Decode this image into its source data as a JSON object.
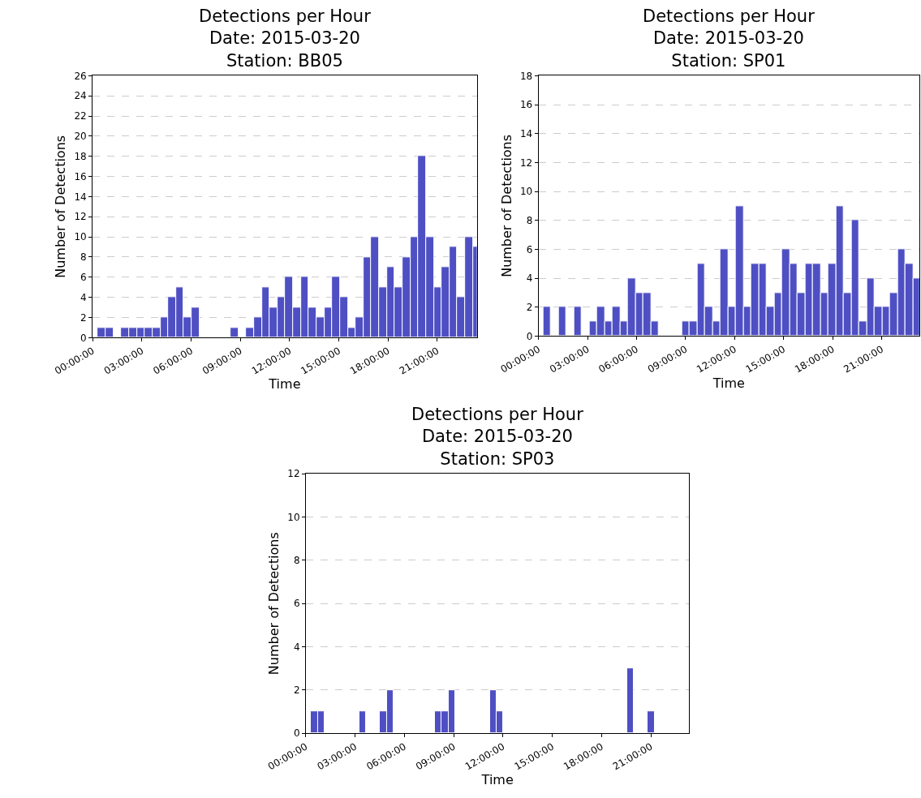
{
  "chart_data": [
    {
      "type": "histogram",
      "title": "Detections per Hour\nDate: 2015-03-20\nStation: BB05",
      "xlabel": "Time",
      "ylabel": "Number of Detections",
      "color": "#4f4fc4",
      "grid": "y",
      "bins": [
        0.32,
        0.8,
        1.27,
        1.75,
        2.22,
        2.7,
        3.18,
        3.65,
        4.13,
        4.6,
        5.08,
        5.56,
        6.03,
        6.51,
        6.98,
        7.46,
        7.94,
        8.41,
        8.89,
        9.36,
        9.84,
        10.32,
        10.79,
        11.27,
        11.74,
        12.22,
        12.7,
        13.17,
        13.65,
        14.12,
        14.6,
        15.08,
        15.55,
        16.03,
        16.5,
        16.98,
        17.46,
        17.93,
        18.41,
        18.88,
        19.36,
        19.84,
        20.31,
        20.79,
        21.26,
        21.74,
        22.22,
        22.69,
        23.17,
        23.64
      ],
      "values": [
        1,
        1,
        0,
        1,
        1,
        1,
        1,
        1,
        2,
        4,
        5,
        2,
        3,
        0,
        0,
        0,
        0,
        1,
        0,
        1,
        2,
        5,
        3,
        4,
        6,
        3,
        6,
        3,
        2,
        3,
        6,
        4,
        1,
        2,
        8,
        10,
        5,
        7,
        5,
        8,
        10,
        18,
        10,
        5,
        7,
        9,
        4,
        10,
        9
      ],
      "xlim": [
        0,
        23.41
      ],
      "xticks": [
        {
          "value": 0,
          "label": "00:00:00"
        },
        {
          "value": 3,
          "label": "03:00:00"
        },
        {
          "value": 6,
          "label": "06:00:00"
        },
        {
          "value": 9,
          "label": "09:00:00"
        },
        {
          "value": 12,
          "label": "12:00:00"
        },
        {
          "value": 15,
          "label": "15:00:00"
        },
        {
          "value": 18,
          "label": "18:00:00"
        },
        {
          "value": 21,
          "label": "21:00:00"
        }
      ],
      "ylim": [
        0,
        26
      ],
      "yticks": [
        0,
        2,
        4,
        6,
        8,
        10,
        12,
        14,
        16,
        18,
        20,
        22,
        24,
        26
      ]
    },
    {
      "type": "histogram",
      "title": "Detections per Hour\nDate: 2015-03-20\nStation: SP01",
      "xlabel": "Time",
      "ylabel": "Number of Detections",
      "color": "#4f4fc4",
      "grid": "y",
      "bins": [
        0.28,
        0.75,
        1.22,
        1.7,
        2.17,
        2.64,
        3.11,
        3.58,
        4.06,
        4.53,
        5.0,
        5.47,
        5.94,
        6.42,
        6.89,
        7.36,
        7.83,
        8.3,
        8.78,
        9.25,
        9.72,
        10.19,
        10.66,
        11.14,
        11.61,
        12.08,
        12.55,
        13.02,
        13.5,
        13.97,
        14.44,
        14.91,
        15.38,
        15.86,
        16.33,
        16.8,
        17.27,
        17.74,
        18.22,
        18.69,
        19.16,
        19.63,
        20.1,
        20.58,
        21.05,
        21.52,
        21.99,
        22.46,
        22.94,
        23.41
      ],
      "values": [
        2,
        0,
        2,
        0,
        2,
        0,
        1,
        2,
        1,
        2,
        1,
        4,
        3,
        3,
        1,
        0,
        0,
        0,
        1,
        1,
        5,
        2,
        1,
        6,
        2,
        9,
        2,
        5,
        5,
        2,
        3,
        6,
        5,
        3,
        5,
        5,
        3,
        5,
        9,
        3,
        8,
        1,
        4,
        2,
        2,
        3,
        6,
        5,
        4
      ],
      "xlim": [
        0,
        23.3
      ],
      "xticks": [
        {
          "value": 0,
          "label": "00:00:00"
        },
        {
          "value": 3,
          "label": "03:00:00"
        },
        {
          "value": 6,
          "label": "06:00:00"
        },
        {
          "value": 9,
          "label": "09:00:00"
        },
        {
          "value": 12,
          "label": "12:00:00"
        },
        {
          "value": 15,
          "label": "15:00:00"
        },
        {
          "value": 18,
          "label": "18:00:00"
        },
        {
          "value": 21,
          "label": "21:00:00"
        }
      ],
      "ylim": [
        0,
        18
      ],
      "yticks": [
        0,
        2,
        4,
        6,
        8,
        10,
        12,
        14,
        16,
        18
      ]
    },
    {
      "type": "histogram",
      "title": "Detections per Hour\nDate: 2015-03-20\nStation: SP03",
      "xlabel": "Time",
      "ylabel": "Number of Detections",
      "color": "#4f4fc4",
      "grid": "y",
      "bins": [
        0.32,
        0.73,
        1.15,
        1.57,
        1.99,
        2.41,
        2.83,
        3.24,
        3.66,
        4.08,
        4.5,
        4.92,
        5.34,
        5.76,
        6.17,
        6.59,
        7.01,
        7.43,
        7.85,
        8.27,
        8.69,
        9.1,
        9.52,
        9.94,
        10.36,
        10.78,
        11.2,
        11.61,
        12.03,
        12.45,
        12.87,
        13.29,
        13.71,
        14.13,
        14.54,
        14.96,
        15.38,
        15.8,
        16.22,
        16.64,
        17.05,
        17.47,
        17.89,
        18.31,
        18.73,
        19.15,
        19.57,
        19.98,
        20.4,
        20.82,
        21.24
      ],
      "values": [
        1,
        1,
        0,
        0,
        0,
        0,
        0,
        1,
        0,
        0,
        1,
        2,
        0,
        0,
        0,
        0,
        0,
        0,
        1,
        1,
        2,
        0,
        0,
        0,
        0,
        0,
        2,
        1,
        0,
        0,
        0,
        0,
        0,
        0,
        0,
        0,
        0,
        0,
        0,
        0,
        0,
        0,
        0,
        0,
        0,
        0,
        3,
        0,
        0,
        1
      ],
      "xlim": [
        0,
        23.34
      ],
      "xticks": [
        {
          "value": 0,
          "label": "00:00:00"
        },
        {
          "value": 3,
          "label": "03:00:00"
        },
        {
          "value": 6,
          "label": "06:00:00"
        },
        {
          "value": 9,
          "label": "09:00:00"
        },
        {
          "value": 12,
          "label": "12:00:00"
        },
        {
          "value": 15,
          "label": "15:00:00"
        },
        {
          "value": 18,
          "label": "18:00:00"
        },
        {
          "value": 21,
          "label": "21:00:00"
        }
      ],
      "ylim": [
        0,
        12
      ],
      "yticks": [
        0,
        2,
        4,
        6,
        8,
        10,
        12
      ]
    }
  ]
}
